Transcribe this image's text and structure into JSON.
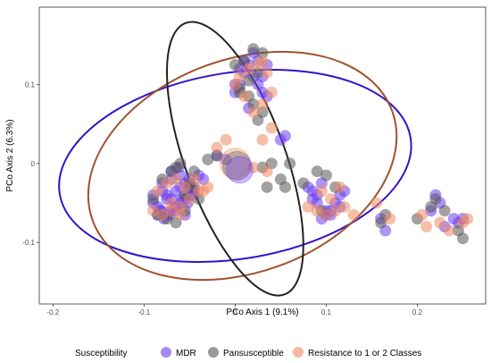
{
  "chart_data": {
    "type": "scatter",
    "xlabel": "PCo Axis 1 (9.1%)",
    "ylabel": "PCo Axis 2 (6.3%)",
    "xlim": [
      -0.215,
      0.275
    ],
    "ylim": [
      -0.178,
      0.198
    ],
    "x_ticks": [
      -0.2,
      -0.1,
      0.0,
      0.1,
      0.2
    ],
    "x_tick_labels": [
      "-0.2",
      "-0.1",
      "0",
      "0.1",
      "0.2"
    ],
    "y_ticks": [
      -0.1,
      0.0,
      0.1
    ],
    "y_tick_labels": [
      "-0.1",
      "0",
      "0.1"
    ],
    "grid": false,
    "legend": {
      "title": "Susceptibility",
      "placement": "bottom",
      "entries": [
        "MDR",
        "Pansusceptible",
        "Resistance to 1 or 2 Classes"
      ]
    },
    "colors": {
      "MDR": "#6b3cf0",
      "Pansusceptible": "#555555",
      "Resistance": "#ef8a62",
      "MDR_ellipse": "#3311cc",
      "Pansusceptible_ellipse": "#222222",
      "Resistance_ellipse": "#a0522d"
    },
    "ellipses": [
      {
        "group": "MDR",
        "cx": 0.0,
        "cy": -0.003,
        "rx": 0.195,
        "ry": 0.118,
        "angle": -9
      },
      {
        "group": "Resistance to 1 or 2 Classes",
        "cx": 0.008,
        "cy": -0.003,
        "rx": 0.175,
        "ry": 0.135,
        "angle": -20
      },
      {
        "group": "Pansusceptible",
        "cx": -0.0,
        "cy": 0.006,
        "rx": 0.055,
        "ry": 0.183,
        "angle": -20
      }
    ],
    "centroids": [
      {
        "group": "Resistance to 1 or 2 Classes",
        "x": 0.0,
        "y": 0.0,
        "size": 17
      },
      {
        "group": "Pansusceptible",
        "x": 0.002,
        "y": -0.003,
        "size": 16
      },
      {
        "group": "MDR",
        "x": 0.005,
        "y": -0.008,
        "size": 15
      }
    ],
    "series": [
      {
        "name": "MDR",
        "x": [
          -0.09,
          -0.085,
          -0.08,
          -0.075,
          -0.07,
          -0.065,
          -0.06,
          -0.055,
          -0.05,
          -0.045,
          -0.08,
          -0.075,
          -0.07,
          -0.065,
          -0.06,
          -0.055,
          -0.05,
          -0.085,
          -0.078,
          -0.072,
          -0.066,
          -0.058,
          -0.052,
          -0.048,
          -0.08,
          -0.07,
          -0.06,
          -0.05,
          -0.075,
          -0.065,
          -0.055,
          -0.045,
          -0.07,
          -0.062,
          -0.04,
          -0.035,
          -0.09,
          -0.082,
          0.0,
          0.005,
          0.01,
          0.015,
          0.02,
          0.025,
          0.03,
          0.035,
          0.03,
          0.02,
          0.01,
          0.005,
          0.0,
          0.015,
          0.025,
          0.035,
          0.05,
          0.055,
          -0.02,
          -0.01,
          0.08,
          0.085,
          0.09,
          0.095,
          0.1,
          0.105,
          0.11,
          0.115,
          0.12,
          0.085,
          0.095,
          0.105,
          0.115,
          0.16,
          0.165,
          0.22,
          0.225,
          0.215,
          0.23,
          0.24,
          0.245,
          0.25,
          0.09,
          0.1
        ],
        "y": [
          -0.05,
          -0.055,
          -0.06,
          -0.065,
          -0.06,
          -0.055,
          -0.05,
          -0.045,
          -0.04,
          -0.035,
          -0.035,
          -0.04,
          -0.045,
          -0.035,
          -0.03,
          -0.025,
          -0.02,
          -0.065,
          -0.07,
          -0.065,
          -0.055,
          -0.045,
          -0.05,
          -0.03,
          -0.025,
          -0.02,
          -0.015,
          -0.03,
          -0.045,
          -0.06,
          -0.065,
          -0.04,
          -0.01,
          -0.005,
          -0.015,
          -0.02,
          -0.04,
          -0.06,
          0.1,
          0.12,
          0.13,
          0.125,
          0.11,
          0.1,
          0.09,
          0.085,
          0.11,
          0.14,
          0.115,
          0.1,
          0.09,
          0.07,
          0.13,
          0.125,
          0.03,
          0.035,
          0.01,
          0.005,
          -0.03,
          -0.035,
          -0.04,
          -0.025,
          -0.06,
          -0.065,
          -0.05,
          -0.055,
          -0.035,
          -0.045,
          -0.07,
          -0.06,
          -0.04,
          -0.07,
          -0.085,
          -0.04,
          -0.05,
          -0.06,
          -0.08,
          -0.07,
          -0.075,
          -0.07,
          -0.05,
          -0.065
        ]
      },
      {
        "name": "Pansusceptible",
        "x": [
          -0.085,
          -0.075,
          -0.065,
          -0.055,
          -0.045,
          -0.08,
          -0.07,
          -0.06,
          -0.05,
          -0.04,
          -0.065,
          -0.055,
          -0.045,
          -0.09,
          -0.03,
          -0.02,
          0.0,
          0.01,
          0.02,
          0.03,
          0.025,
          0.015,
          0.005,
          0.02,
          0.03,
          0.005,
          0.015,
          0.025,
          0.04,
          0.05,
          0.035,
          0.03,
          0.055,
          0.06,
          0.075,
          0.095,
          0.1,
          0.09,
          0.11,
          0.16,
          0.165,
          0.2,
          0.215,
          0.22,
          0.23,
          0.245,
          0.25
        ],
        "y": [
          -0.065,
          -0.07,
          -0.075,
          -0.06,
          -0.03,
          -0.02,
          -0.01,
          0.0,
          -0.025,
          -0.045,
          -0.005,
          -0.04,
          -0.01,
          -0.045,
          0.005,
          0.01,
          0.125,
          0.13,
          0.145,
          0.14,
          0.115,
          0.105,
          0.09,
          0.075,
          0.065,
          0.095,
          0.085,
          0.055,
          0.0,
          -0.02,
          -0.03,
          -0.005,
          -0.03,
          0.0,
          -0.025,
          -0.06,
          -0.015,
          -0.01,
          -0.03,
          -0.075,
          -0.065,
          -0.07,
          -0.055,
          -0.045,
          -0.06,
          -0.085,
          -0.095
        ]
      },
      {
        "name": "Resistance to 1 or 2 Classes",
        "x": [
          -0.09,
          -0.08,
          -0.07,
          -0.06,
          -0.05,
          -0.04,
          -0.03,
          -0.085,
          -0.075,
          -0.065,
          -0.055,
          -0.045,
          -0.035,
          -0.07,
          -0.06,
          0.005,
          0.015,
          0.025,
          0.035,
          0.04,
          0.03,
          0.02,
          0.01,
          0.0,
          0.03,
          0.04,
          0.03,
          0.02,
          0.08,
          0.09,
          0.1,
          0.11,
          0.12,
          0.095,
          0.105,
          0.115,
          0.13,
          0.155,
          0.17,
          0.205,
          0.21,
          0.225,
          0.235,
          0.25,
          0.255,
          -0.02,
          -0.01,
          0.035
        ],
        "y": [
          -0.06,
          -0.065,
          -0.06,
          -0.055,
          -0.045,
          -0.035,
          -0.03,
          -0.035,
          -0.025,
          -0.02,
          -0.03,
          -0.02,
          -0.035,
          -0.05,
          -0.065,
          0.11,
          0.12,
          0.125,
          0.115,
          0.09,
          0.075,
          0.065,
          0.085,
          0.1,
          0.13,
          0.045,
          0.03,
          -0.005,
          -0.055,
          -0.06,
          -0.065,
          -0.06,
          -0.055,
          -0.035,
          -0.045,
          -0.03,
          -0.065,
          -0.05,
          -0.07,
          -0.065,
          -0.08,
          -0.075,
          -0.085,
          -0.075,
          -0.07,
          0.02,
          0.03,
          -0.01
        ]
      }
    ]
  }
}
